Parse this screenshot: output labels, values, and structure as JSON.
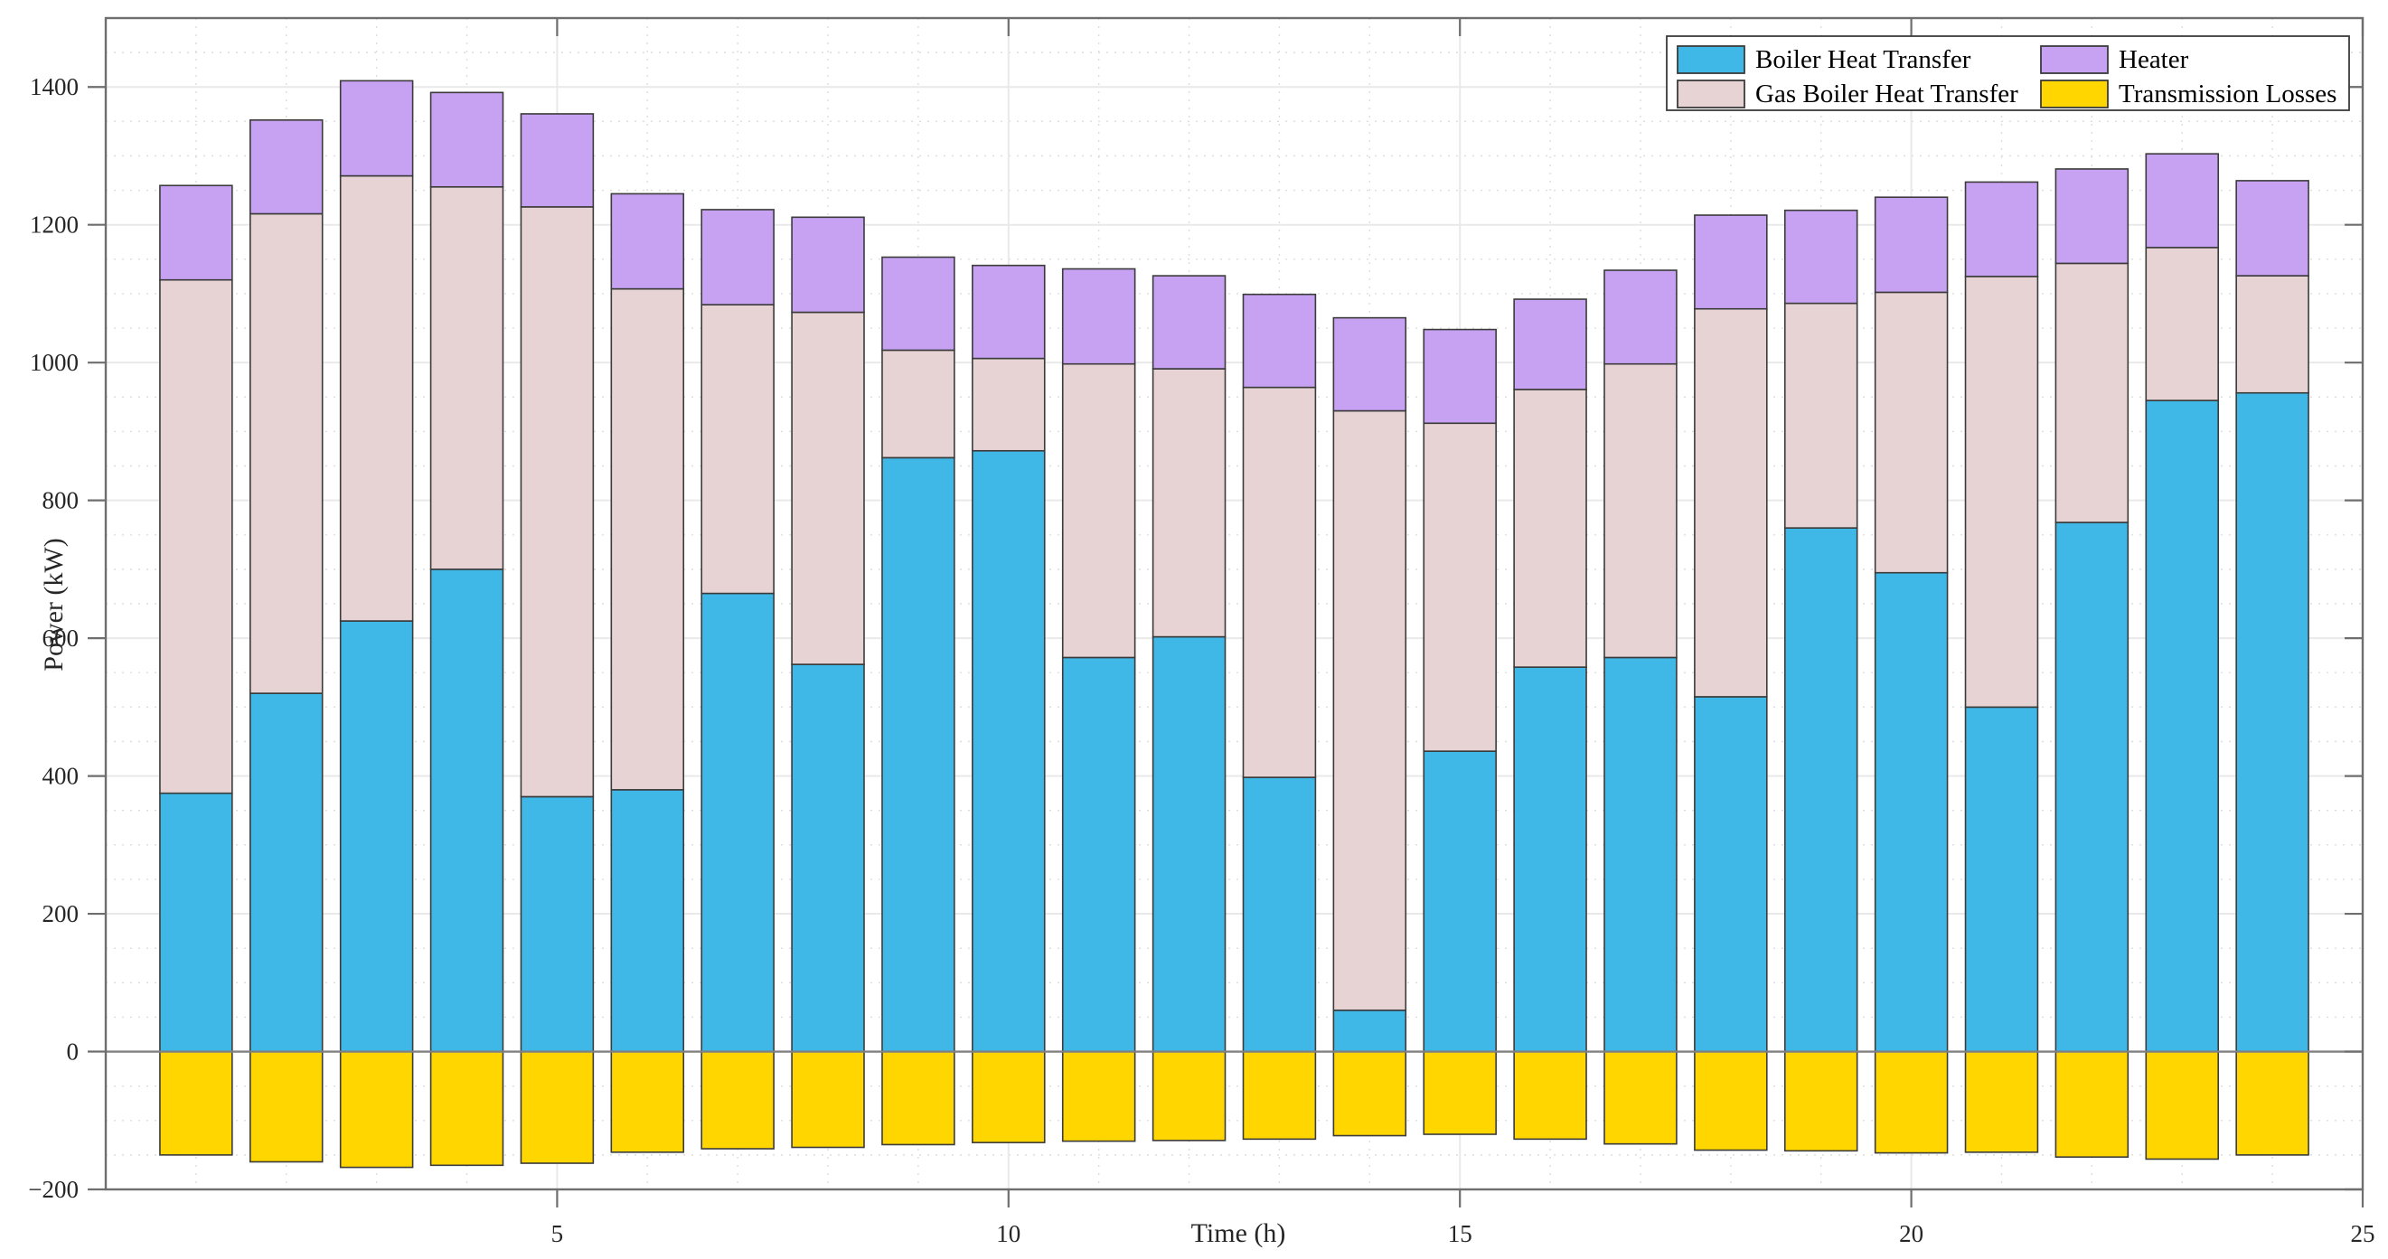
{
  "chart_data": {
    "type": "bar",
    "stacked": true,
    "title": "",
    "xlabel": "Time (h)",
    "ylabel": "Power (kW)",
    "x_unit_hours": [
      1,
      2,
      3,
      4,
      5,
      6,
      7,
      8,
      9,
      10,
      11,
      12,
      13,
      14,
      15,
      16,
      17,
      18,
      19,
      20,
      21,
      22,
      23,
      24
    ],
    "xticks": [
      5,
      10,
      15,
      20,
      25
    ],
    "yticks": [
      -200,
      0,
      200,
      400,
      600,
      800,
      1000,
      1200,
      1400
    ],
    "xlim": [
      0,
      25
    ],
    "ylim": [
      -200,
      1500
    ],
    "bar_width_fraction": 0.8,
    "grid": "major-and-minor",
    "minor_grid_step_y": 50,
    "minor_grid_step_x": 1,
    "legend_position": "top-right",
    "series": [
      {
        "name": "Boiler Heat Transfer",
        "key": "boiler-heat-transfer",
        "color": "#3FB8E8",
        "values": [
          375,
          520,
          625,
          700,
          370,
          380,
          665,
          562,
          862,
          872,
          572,
          602,
          398,
          60,
          436,
          558,
          572,
          515,
          760,
          695,
          500,
          768,
          945,
          956
        ]
      },
      {
        "name": "Gas Boiler Heat Transfer",
        "key": "gas-boiler-heat-transfer",
        "color": "#E8D3D4",
        "values": [
          745,
          696,
          646,
          555,
          856,
          727,
          419,
          511,
          156,
          134,
          426,
          389,
          566,
          870,
          476,
          403,
          426,
          563,
          326,
          407,
          625,
          376,
          222,
          170
        ]
      },
      {
        "name": "Heater",
        "key": "heater",
        "color": "#C8A2F2",
        "values": [
          137,
          136,
          138,
          137,
          135,
          138,
          138,
          138,
          135,
          135,
          138,
          135,
          135,
          135,
          136,
          131,
          136,
          136,
          135,
          138,
          137,
          137,
          136,
          138
        ]
      },
      {
        "name": "Transmission Losses",
        "key": "transmission-losses",
        "color": "#FFD600",
        "values": [
          -150,
          -160,
          -168,
          -165,
          -162,
          -146,
          -141,
          -139,
          -135,
          -132,
          -130,
          -129,
          -127,
          -122,
          -120,
          -127,
          -134,
          -143,
          -144,
          -147,
          -146,
          -153,
          -156,
          -150
        ]
      }
    ],
    "bar_edge_color": "#3B3B3B",
    "axis_box_color": "#6E6E6E",
    "zero_line_color": "#808080",
    "major_grid_color": "#E9E9E9",
    "minor_grid_color": "#DDDDDD",
    "tick_label_color": "#262626",
    "plot_background": "#FFFFFF"
  }
}
